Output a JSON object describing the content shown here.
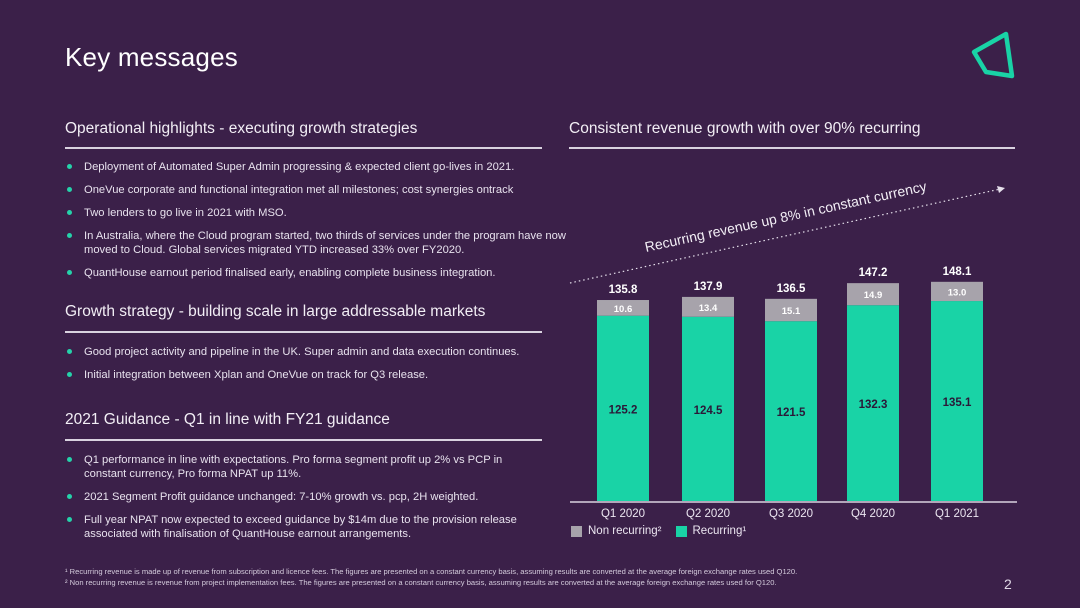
{
  "page": {
    "title": "Key messages",
    "page_number": "2"
  },
  "left": {
    "sections": [
      {
        "heading": "Operational highlights - executing growth strategies",
        "bullets": [
          "Deployment of Automated Super Admin progressing & expected client go-lives in 2021.",
          "OneVue corporate and functional integration met all milestones; cost synergies ontrack",
          "Two lenders to go live in 2021 with MSO.",
          "In Australia, where the Cloud program started, two thirds of services under the program have now moved to Cloud. Global services migrated YTD increased 33% over FY2020.",
          "QuantHouse earnout period finalised early, enabling complete business integration."
        ]
      },
      {
        "heading": "Growth strategy - building scale in large addressable markets",
        "bullets": [
          "Good project activity and pipeline in the UK. Super admin and data execution continues.",
          "Initial integration between Xplan and OneVue on track for Q3 release."
        ]
      },
      {
        "heading": "2021 Guidance - Q1 in line with FY21 guidance",
        "bullets": [
          "Q1 performance in line with expectations.  Pro forma segment profit up 2% vs PCP in constant currency, Pro forma NPAT up 11%.",
          "2021 Segment Profit guidance unchanged: 7-10% growth vs. pcp, 2H weighted.",
          "Full year NPAT now expected to exceed guidance by $14m  due to the  provision release associated with finalisation of QuantHouse earnout arrangements."
        ]
      }
    ]
  },
  "right": {
    "heading": "Consistent revenue growth with over 90% recurring"
  },
  "chart_data": {
    "type": "bar",
    "stacked": true,
    "categories": [
      "Q1 2020",
      "Q2 2020",
      "Q3 2020",
      "Q4 2020",
      "Q1 2021"
    ],
    "series": [
      {
        "name": "Recurring¹",
        "values": [
          125.2,
          124.5,
          121.5,
          132.3,
          135.1
        ],
        "color": "#19d3a6"
      },
      {
        "name": "Non recurring²",
        "values": [
          10.6,
          13.4,
          15.1,
          14.9,
          13.0
        ],
        "color": "#a7a3ab"
      }
    ],
    "totals": [
      135.8,
      137.9,
      136.5,
      147.2,
      148.1
    ],
    "annotation": "Recurring revenue up 8% in constant currency",
    "legend_position": "bottom-left",
    "grid": false
  },
  "legend": {
    "non_recurring": "Non recurring²",
    "recurring": "Recurring¹"
  },
  "footnotes": [
    "¹ Recurring revenue is made up of revenue from subscription and licence fees. The figures are presented on a constant currency basis, assuming results are converted at the average foreign exchange rates used Q120.",
    "² Non recurring revenue is revenue from project implementation fees.  The figures are presented on a constant currency basis, assuming results are converted at the average foreign exchange rates used for Q120."
  ],
  "colors": {
    "background": "#3b2049",
    "accent": "#19d3a6",
    "non_recurring": "#a7a3ab"
  }
}
